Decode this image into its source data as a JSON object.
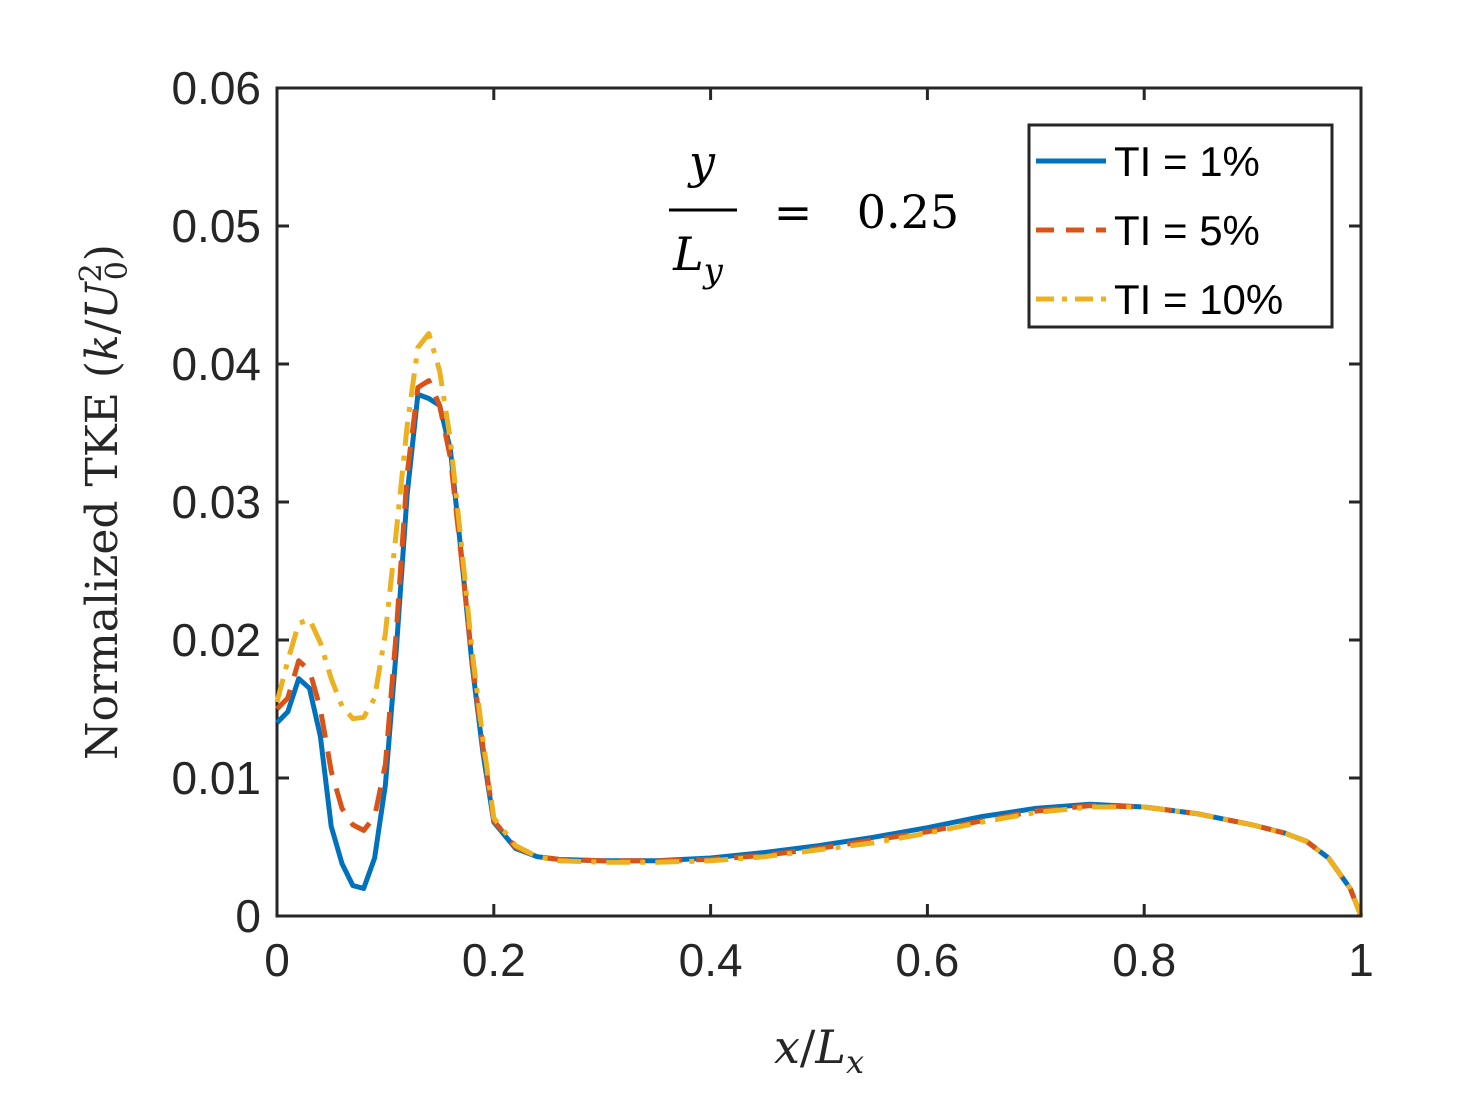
{
  "chart_data": {
    "type": "line",
    "xlabel": "x/L_x",
    "ylabel": "Normalized TKE (k/U_0^2)",
    "xlim": [
      0,
      1
    ],
    "ylim": [
      0,
      0.06
    ],
    "xticks": [
      0,
      0.2,
      0.4,
      0.6,
      0.8,
      1
    ],
    "xtick_labels": [
      "0",
      "0.2",
      "0.4",
      "0.6",
      "0.8",
      "1"
    ],
    "yticks": [
      0,
      0.01,
      0.02,
      0.03,
      0.04,
      0.05,
      0.06
    ],
    "ytick_labels": [
      "0",
      "0.01",
      "0.02",
      "0.03",
      "0.04",
      "0.05",
      "0.06"
    ],
    "grid": false,
    "legend_position": "top-right",
    "annotation": {
      "numerator": "y",
      "denominator": "L_y",
      "equals": "=",
      "value": "0.25"
    },
    "series": [
      {
        "name": "TI = 1%",
        "color": "#0072BD",
        "style": "solid",
        "x": [
          0,
          0.01,
          0.02,
          0.03,
          0.04,
          0.05,
          0.06,
          0.07,
          0.08,
          0.09,
          0.1,
          0.11,
          0.12,
          0.13,
          0.14,
          0.15,
          0.16,
          0.17,
          0.18,
          0.19,
          0.2,
          0.22,
          0.24,
          0.26,
          0.3,
          0.35,
          0.4,
          0.45,
          0.5,
          0.55,
          0.6,
          0.65,
          0.7,
          0.75,
          0.8,
          0.85,
          0.9,
          0.93,
          0.95,
          0.97,
          0.99,
          1.0
        ],
        "y": [
          0.014,
          0.0148,
          0.0172,
          0.0165,
          0.013,
          0.0065,
          0.0038,
          0.0022,
          0.002,
          0.0042,
          0.0095,
          0.0192,
          0.0305,
          0.0378,
          0.0375,
          0.037,
          0.0338,
          0.0262,
          0.0182,
          0.0118,
          0.0068,
          0.0049,
          0.0043,
          0.0041,
          0.004,
          0.004,
          0.0042,
          0.0046,
          0.0051,
          0.0057,
          0.0064,
          0.0072,
          0.0078,
          0.0081,
          0.0079,
          0.0074,
          0.0066,
          0.006,
          0.0054,
          0.0042,
          0.002,
          0.0
        ]
      },
      {
        "name": "TI = 5%",
        "color": "#D95319",
        "style": "dashed",
        "x": [
          0,
          0.01,
          0.02,
          0.03,
          0.04,
          0.05,
          0.06,
          0.07,
          0.08,
          0.09,
          0.1,
          0.11,
          0.12,
          0.13,
          0.14,
          0.15,
          0.16,
          0.17,
          0.18,
          0.19,
          0.2,
          0.22,
          0.24,
          0.26,
          0.3,
          0.35,
          0.4,
          0.45,
          0.5,
          0.55,
          0.6,
          0.65,
          0.7,
          0.75,
          0.8,
          0.85,
          0.9,
          0.93,
          0.95,
          0.97,
          0.99,
          1.0
        ],
        "y": [
          0.015,
          0.0158,
          0.0185,
          0.0178,
          0.015,
          0.0105,
          0.0078,
          0.0066,
          0.0062,
          0.0072,
          0.011,
          0.0205,
          0.032,
          0.0383,
          0.0388,
          0.037,
          0.0332,
          0.026,
          0.0185,
          0.0122,
          0.0069,
          0.005,
          0.0043,
          0.0041,
          0.004,
          0.004,
          0.0041,
          0.0044,
          0.0049,
          0.0055,
          0.0061,
          0.0069,
          0.0076,
          0.008,
          0.0079,
          0.0074,
          0.0066,
          0.006,
          0.0054,
          0.0042,
          0.002,
          0.0
        ]
      },
      {
        "name": "TI = 10%",
        "color": "#EDB120",
        "style": "dashdot",
        "x": [
          0,
          0.01,
          0.02,
          0.03,
          0.04,
          0.05,
          0.06,
          0.07,
          0.08,
          0.09,
          0.1,
          0.11,
          0.12,
          0.13,
          0.14,
          0.15,
          0.16,
          0.17,
          0.18,
          0.19,
          0.2,
          0.22,
          0.24,
          0.26,
          0.3,
          0.35,
          0.4,
          0.45,
          0.5,
          0.55,
          0.6,
          0.65,
          0.7,
          0.75,
          0.8,
          0.85,
          0.9,
          0.93,
          0.95,
          0.97,
          0.99,
          1.0
        ],
        "y": [
          0.0155,
          0.0185,
          0.0212,
          0.0215,
          0.0198,
          0.0172,
          0.0152,
          0.0143,
          0.0144,
          0.0158,
          0.0205,
          0.0278,
          0.0355,
          0.0412,
          0.0422,
          0.0395,
          0.0345,
          0.027,
          0.0192,
          0.0128,
          0.0071,
          0.0051,
          0.0043,
          0.004,
          0.0039,
          0.0039,
          0.004,
          0.0043,
          0.0048,
          0.0053,
          0.006,
          0.0068,
          0.0075,
          0.0079,
          0.0079,
          0.0074,
          0.0066,
          0.006,
          0.0054,
          0.0042,
          0.002,
          0.0
        ]
      }
    ]
  }
}
